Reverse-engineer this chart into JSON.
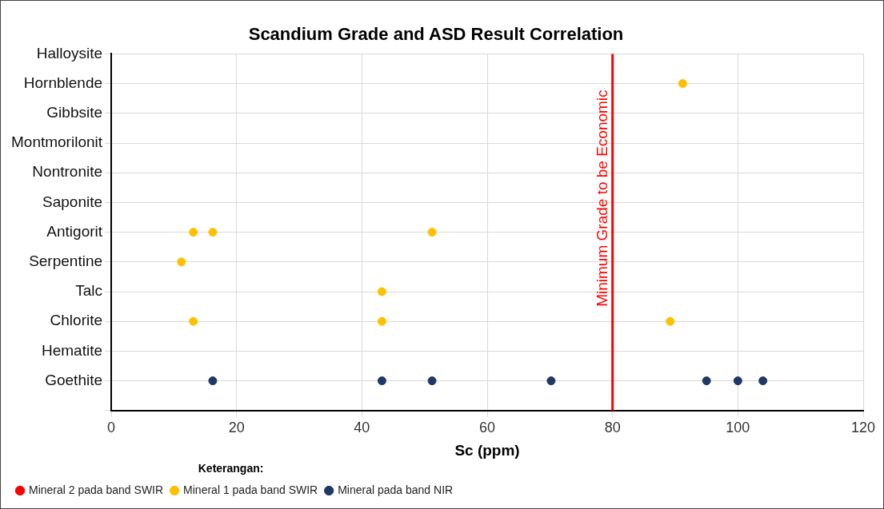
{
  "chart_data": {
    "type": "scatter",
    "orientation": "horizontal",
    "title": "Scandium Grade and ASD Result Correlation",
    "xlabel": "Sc (ppm)",
    "legend_title": "Keterangan:",
    "categories": [
      "Halloysite",
      "Hornblende",
      "Gibbsite",
      "Montmorilonit",
      "Nontronite",
      "Saponite",
      "Antigorit",
      "Serpentine",
      "Talc",
      "Chlorite",
      "Hematite",
      "Goethite",
      null
    ],
    "series": [
      {
        "name": "Mineral 2 pada band SWIR",
        "color": "#ff0000",
        "values": [
          null,
          null,
          null,
          null,
          null,
          null,
          null,
          null,
          null,
          null,
          null,
          null,
          null
        ]
      },
      {
        "name": "Mineral 1 pada band SWIR",
        "color": "#ffc000",
        "x": [
          "Hornblende",
          "Antigorit",
          "Antigorit",
          "Antigorit",
          "Serpentine",
          "Talc",
          "Chlorite",
          "Chlorite",
          "Chlorite"
        ],
        "values": [
          91.2,
          13.1,
          16.2,
          51.2,
          11.2,
          43.2,
          13.1,
          43.2,
          89.2
        ]
      },
      {
        "name": "Mineral pada band NIR",
        "color": "#1f3864",
        "x": [
          "Goethite",
          "Goethite",
          "Goethite",
          "Goethite",
          "Goethite",
          "Goethite",
          "Goethite"
        ],
        "values": [
          16.2,
          43.2,
          51.2,
          70.2,
          95,
          100,
          104
        ]
      }
    ],
    "xlim": [
      0,
      120
    ],
    "xticks": [
      0,
      20,
      40,
      60,
      80,
      100,
      120
    ],
    "ref_lines": [
      {
        "axis": "x",
        "value": 80,
        "label": "Minimum Grade to be Economic",
        "color": "#ff0000"
      }
    ],
    "grid": true,
    "legend": "bottom left",
    "marker": "circle"
  }
}
